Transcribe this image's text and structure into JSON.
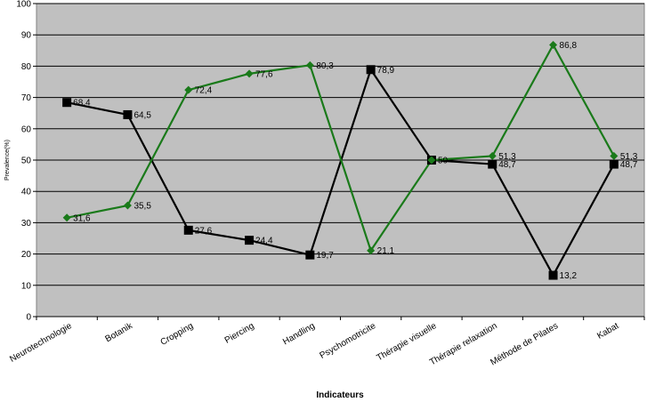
{
  "chart_data": {
    "type": "line",
    "xlabel": "Indicateurs",
    "ylabel": "Prevalence(%)",
    "ylim": [
      0,
      100
    ],
    "yticks": [
      0,
      10,
      20,
      30,
      40,
      50,
      60,
      70,
      80,
      90,
      100
    ],
    "grid": true,
    "categories": [
      "Neurotechnologie",
      "Botanik",
      "Cropping",
      "Piercing",
      "Handling",
      "Psychomotricite",
      "Thérapie visuelle",
      "Thérapie relaxation",
      "Méthode de Pilates",
      "Kabat"
    ],
    "series": [
      {
        "marker": "square",
        "color": "#000000",
        "values": [
          68.4,
          64.5,
          27.6,
          24.4,
          19.7,
          78.9,
          50,
          48.7,
          13.2,
          48.7
        ],
        "labels": [
          "68,4",
          "64,5",
          "27,6",
          "24,4",
          "19,7",
          "78,9",
          "50",
          "48,7",
          "13,2",
          "48,7"
        ]
      },
      {
        "marker": "diamond",
        "color": "#1a7a1a",
        "values": [
          31.6,
          35.5,
          72.4,
          77.6,
          80.3,
          21.1,
          50,
          51.3,
          86.8,
          51.3
        ],
        "labels": [
          "31,6",
          "35,5",
          "72,4",
          "77,6",
          "80,3",
          "21,1",
          "",
          "51,3",
          "86,8",
          "51,3"
        ]
      }
    ]
  }
}
